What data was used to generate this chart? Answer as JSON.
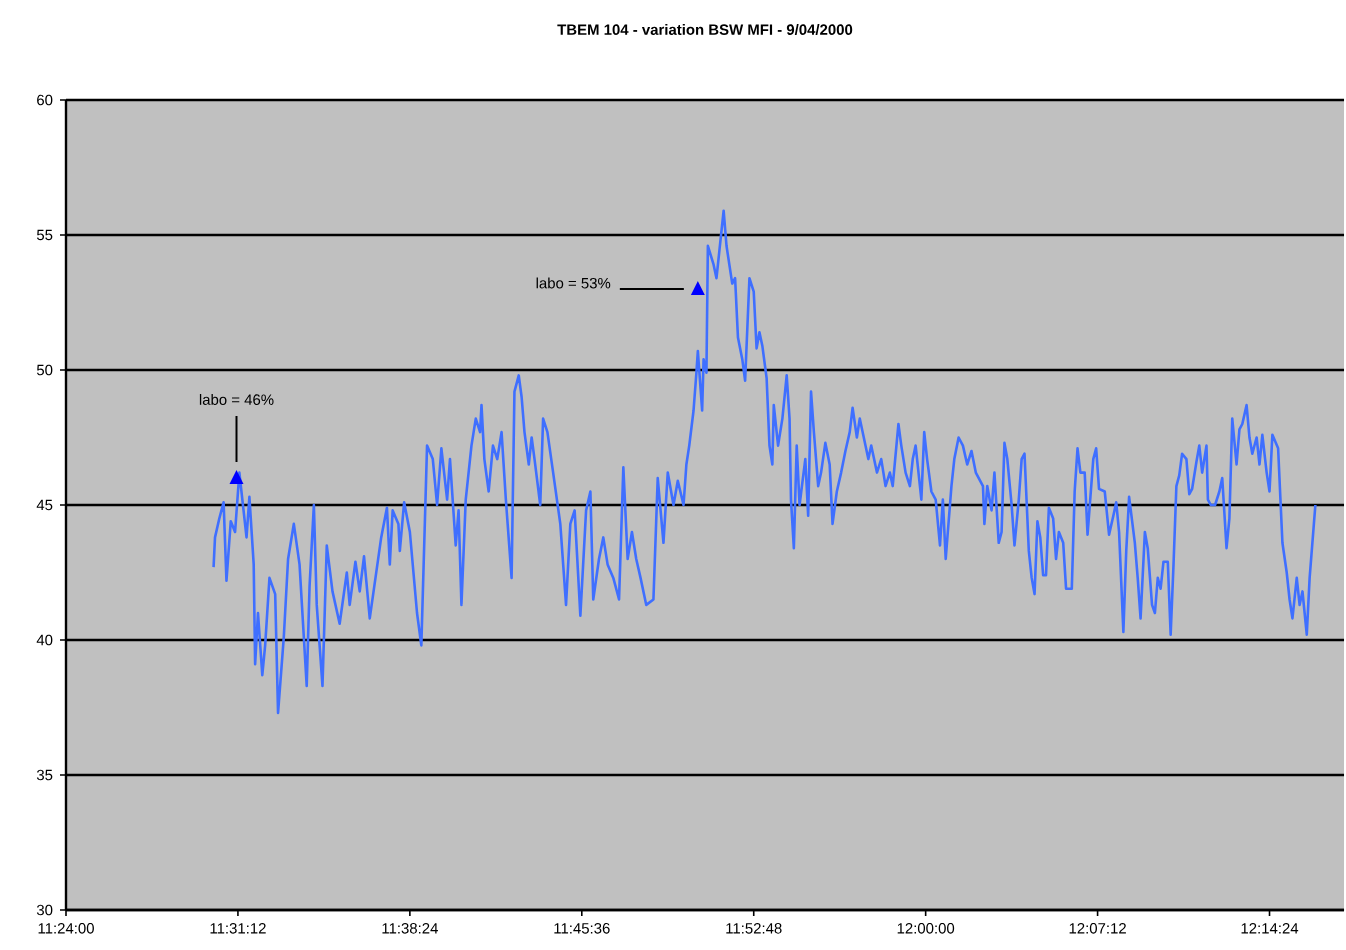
{
  "chart_data": {
    "type": "line",
    "title": "TBEM 104 - variation BSW MFI - 9/04/2000",
    "xlim": [
      11.4,
      12.292
    ],
    "ylim": [
      30,
      60
    ],
    "xticks": [
      {
        "value": 11.4,
        "label": "11:24:00"
      },
      {
        "value": 11.52,
        "label": "11:31:12"
      },
      {
        "value": 11.64,
        "label": "11:38:24"
      },
      {
        "value": 11.76,
        "label": "11:45:36"
      },
      {
        "value": 11.88,
        "label": "11:52:48"
      },
      {
        "value": 12.0,
        "label": "12:00:00"
      },
      {
        "value": 12.12,
        "label": "12:07:12"
      },
      {
        "value": 12.24,
        "label": "12:14:24"
      }
    ],
    "yticks": [
      30,
      35,
      40,
      45,
      50,
      55,
      60
    ],
    "grid": "y",
    "marker": "none",
    "line_style": "solid",
    "annotations": [
      {
        "text": "labo = 46%",
        "x": 11.519,
        "y": 46.0
      },
      {
        "text": "labo = 53%",
        "x": 11.841,
        "y": 53.0
      }
    ],
    "series": [
      {
        "color": "#3f6fff",
        "x": [
          11.503,
          11.504,
          11.507,
          11.51,
          11.512,
          11.515,
          11.518,
          11.521,
          11.526,
          11.528,
          11.531,
          11.532,
          11.534,
          11.537,
          11.539,
          11.542,
          11.546,
          11.548,
          11.552,
          11.555,
          11.559,
          11.563,
          11.568,
          11.57,
          11.573,
          11.575,
          11.579,
          11.582,
          11.586,
          11.591,
          11.596,
          11.598,
          11.602,
          11.605,
          11.608,
          11.612,
          11.616,
          11.62,
          11.624,
          11.626,
          11.628,
          11.632,
          11.633,
          11.636,
          11.64,
          11.645,
          11.648,
          11.652,
          11.656,
          11.659,
          11.662,
          11.666,
          11.668,
          11.672,
          11.674,
          11.676,
          11.679,
          11.683,
          11.686,
          11.689,
          11.69,
          11.692,
          11.695,
          11.698,
          11.701,
          11.704,
          11.707,
          11.711,
          11.713,
          11.716,
          11.718,
          11.72,
          11.723,
          11.725,
          11.727,
          11.731,
          11.733,
          11.736,
          11.74,
          11.745,
          11.749,
          11.752,
          11.755,
          11.759,
          11.763,
          11.766,
          11.768,
          11.772,
          11.775,
          11.778,
          11.782,
          11.786,
          11.789,
          11.792,
          11.795,
          11.798,
          11.801,
          11.805,
          11.81,
          11.813,
          11.817,
          11.82,
          11.824,
          11.827,
          11.831,
          11.833,
          11.835,
          11.838,
          11.84,
          11.841,
          11.844,
          11.845,
          11.847,
          11.848,
          11.852,
          11.854,
          11.856,
          11.859,
          11.861,
          11.865,
          11.867,
          11.869,
          11.872,
          11.874,
          11.877,
          11.88,
          11.882,
          11.884,
          11.886,
          11.889,
          11.891,
          11.893,
          11.894,
          11.897,
          11.9,
          11.903,
          11.905,
          11.906,
          11.908,
          11.91,
          11.912,
          11.916,
          11.918,
          11.92,
          11.922,
          11.925,
          11.927,
          11.93,
          11.933,
          11.935,
          11.938,
          11.941,
          11.944,
          11.947,
          11.949,
          11.952,
          11.954,
          11.956,
          11.96,
          11.962,
          11.966,
          11.969,
          11.972,
          11.975,
          11.977,
          11.981,
          11.983,
          11.986,
          11.989,
          11.991,
          11.993,
          11.997,
          11.999,
          12.001,
          12.004,
          12.007,
          12.01,
          12.012,
          12.014,
          12.018,
          12.02,
          12.023,
          12.026,
          12.029,
          12.032,
          12.035,
          12.04,
          12.041,
          12.043,
          12.046,
          12.048,
          12.051,
          12.053,
          12.055,
          12.057,
          12.06,
          12.062,
          12.065,
          12.067,
          12.069,
          12.072,
          12.074,
          12.076,
          12.078,
          12.08,
          12.082,
          12.084,
          12.086,
          12.089,
          12.091,
          12.093,
          12.096,
          12.098,
          12.102,
          12.104,
          12.106,
          12.108,
          12.111,
          12.113,
          12.117,
          12.119,
          12.121,
          12.125,
          12.128,
          12.131,
          12.133,
          12.135,
          12.138,
          12.14,
          12.142,
          12.146,
          12.148,
          12.15,
          12.153,
          12.155,
          12.158,
          12.16,
          12.162,
          12.164,
          12.166,
          12.169,
          12.171,
          12.173,
          12.175,
          12.177,
          12.179,
          12.182,
          12.184,
          12.186,
          12.189,
          12.191,
          12.193,
          12.196,
          12.197,
          12.199,
          12.202,
          12.205,
          12.207,
          12.21,
          12.212,
          12.214,
          12.217,
          12.219,
          12.221,
          12.224,
          12.226,
          12.228,
          12.231,
          12.233,
          12.235,
          12.238,
          12.24,
          12.242,
          12.246,
          12.249,
          12.252,
          12.254,
          12.256,
          12.259,
          12.261,
          12.263,
          12.266,
          12.268,
          12.272
        ],
        "values": [
          42.7,
          43.8,
          44.5,
          45.1,
          42.2,
          44.4,
          44.0,
          46.2,
          43.8,
          45.3,
          42.8,
          39.1,
          41.0,
          38.7,
          39.8,
          42.3,
          41.7,
          37.3,
          40.1,
          43.0,
          44.3,
          42.8,
          38.3,
          42.0,
          45.0,
          41.3,
          38.3,
          43.5,
          41.8,
          40.6,
          42.5,
          41.3,
          42.9,
          41.8,
          43.1,
          40.8,
          42.3,
          43.8,
          44.9,
          42.8,
          44.8,
          44.3,
          43.3,
          45.1,
          44.0,
          41.0,
          39.8,
          47.2,
          46.7,
          45.0,
          47.1,
          45.2,
          46.7,
          43.5,
          44.8,
          41.3,
          45.2,
          47.2,
          48.2,
          47.7,
          48.7,
          46.7,
          45.5,
          47.2,
          46.7,
          47.7,
          45.2,
          42.3,
          49.2,
          49.8,
          49.0,
          47.7,
          46.5,
          47.5,
          46.7,
          45.0,
          48.2,
          47.7,
          46.2,
          44.3,
          41.3,
          44.3,
          44.8,
          40.9,
          44.8,
          45.5,
          41.5,
          43.0,
          43.8,
          42.8,
          42.3,
          41.5,
          46.4,
          43.0,
          44.0,
          43.0,
          42.3,
          41.3,
          41.5,
          46.0,
          43.6,
          46.2,
          45.0,
          45.9,
          45.0,
          46.5,
          47.2,
          48.5,
          49.9,
          50.7,
          48.5,
          50.4,
          49.9,
          54.6,
          53.9,
          53.4,
          54.4,
          55.9,
          54.6,
          53.2,
          53.4,
          51.2,
          50.4,
          49.6,
          53.4,
          52.9,
          50.8,
          51.4,
          50.9,
          49.7,
          47.2,
          46.5,
          48.7,
          47.2,
          48.2,
          49.8,
          48.2,
          45.2,
          43.4,
          47.2,
          45.0,
          46.7,
          44.6,
          49.2,
          47.7,
          45.7,
          46.2,
          47.3,
          46.5,
          44.3,
          45.5,
          46.2,
          47.0,
          47.7,
          48.6,
          47.5,
          48.2,
          47.7,
          46.7,
          47.2,
          46.2,
          46.7,
          45.7,
          46.2,
          45.7,
          48.0,
          47.2,
          46.2,
          45.7,
          46.7,
          47.2,
          45.2,
          47.7,
          46.7,
          45.5,
          45.2,
          43.5,
          45.2,
          43.0,
          45.7,
          46.7,
          47.5,
          47.2,
          46.5,
          47.0,
          46.2,
          45.7,
          44.3,
          45.7,
          44.8,
          46.2,
          43.6,
          44.0,
          47.3,
          46.7,
          45.0,
          43.5,
          45.2,
          46.7,
          46.9,
          43.3,
          42.3,
          41.7,
          44.4,
          43.8,
          42.4,
          42.4,
          44.9,
          44.5,
          43.0,
          44.0,
          43.6,
          41.9,
          41.9,
          45.5,
          47.1,
          46.2,
          46.2,
          43.9,
          46.7,
          47.1,
          45.6,
          45.5,
          43.9,
          44.6,
          45.1,
          44.0,
          40.3,
          43.3,
          45.3,
          43.6,
          42.3,
          40.8,
          44.0,
          43.4,
          41.3,
          41.0,
          42.3,
          41.9,
          42.9,
          42.9,
          40.2,
          42.8,
          45.7,
          46.1,
          46.9,
          46.7,
          45.4,
          45.6,
          46.6,
          47.2,
          46.2,
          47.2,
          45.2,
          45.0,
          45.0,
          45.5,
          46.0,
          43.4,
          44.5,
          48.2,
          46.5,
          47.8,
          48.0,
          48.7,
          47.5,
          46.9,
          47.5,
          46.5,
          47.6,
          46.2,
          45.5,
          47.6,
          47.1,
          43.6,
          42.5,
          41.5,
          40.8,
          42.3,
          41.3,
          41.8,
          40.2,
          42.3,
          45.0
        ]
      }
    ]
  }
}
